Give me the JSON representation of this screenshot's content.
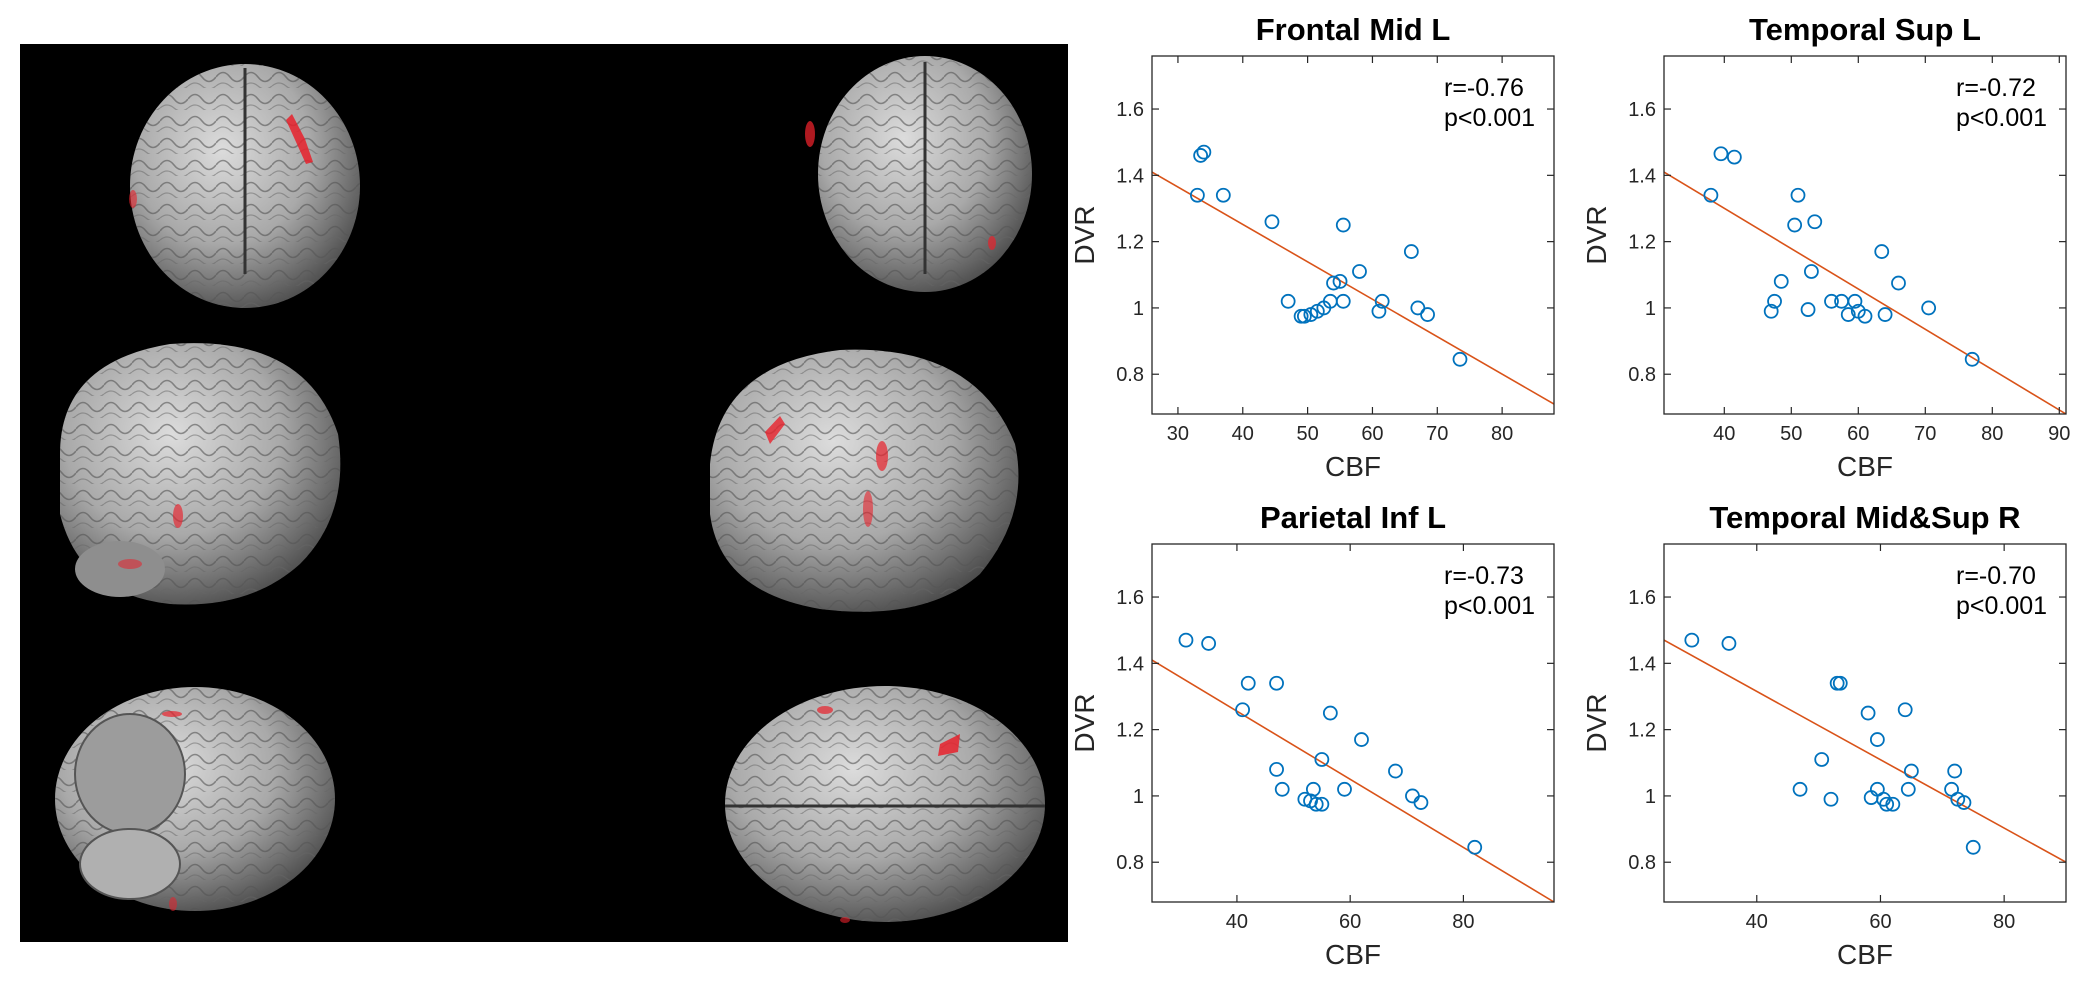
{
  "colors": {
    "marker": "#0072BD",
    "fit_line": "#D95319",
    "axes": "#262626",
    "activation": "#e8212b",
    "brain": "#a9a9a9"
  },
  "brain_views": [
    "anterior",
    "posterior",
    "left-lateral",
    "right-lateral",
    "inferior",
    "superior"
  ],
  "chart_data": [
    {
      "type": "scatter",
      "title": "Frontal Mid L",
      "xlabel": "CBF",
      "ylabel": "DVR",
      "xlim": [
        26,
        88
      ],
      "ylim": [
        0.68,
        1.76
      ],
      "xticks": [
        30,
        40,
        50,
        60,
        70,
        80
      ],
      "yticks": [
        0.8,
        1,
        1.2,
        1.4,
        1.6
      ],
      "annotation": [
        "r=-0.76",
        "p<0.001"
      ],
      "fit": {
        "x": [
          26,
          88
        ],
        "y": [
          1.41,
          0.71
        ]
      },
      "points": [
        {
          "x": 33,
          "y": 1.34
        },
        {
          "x": 33.5,
          "y": 1.46
        },
        {
          "x": 34,
          "y": 1.47
        },
        {
          "x": 37,
          "y": 1.34
        },
        {
          "x": 44.5,
          "y": 1.26
        },
        {
          "x": 47,
          "y": 1.02
        },
        {
          "x": 49,
          "y": 0.975
        },
        {
          "x": 49.5,
          "y": 0.975
        },
        {
          "x": 50.5,
          "y": 0.98
        },
        {
          "x": 51.5,
          "y": 0.99
        },
        {
          "x": 52.5,
          "y": 1.0
        },
        {
          "x": 53.5,
          "y": 1.02
        },
        {
          "x": 54,
          "y": 1.075
        },
        {
          "x": 55,
          "y": 1.08
        },
        {
          "x": 55.5,
          "y": 1.02
        },
        {
          "x": 55.5,
          "y": 1.25
        },
        {
          "x": 58,
          "y": 1.11
        },
        {
          "x": 61,
          "y": 0.99
        },
        {
          "x": 61.5,
          "y": 1.02
        },
        {
          "x": 66,
          "y": 1.17
        },
        {
          "x": 67,
          "y": 1.0
        },
        {
          "x": 68.5,
          "y": 0.98
        },
        {
          "x": 73.5,
          "y": 0.845
        }
      ]
    },
    {
      "type": "scatter",
      "title": "Temporal Sup L",
      "xlabel": "CBF",
      "ylabel": "DVR",
      "xlim": [
        31,
        91
      ],
      "ylim": [
        0.68,
        1.76
      ],
      "xticks": [
        40,
        50,
        60,
        70,
        80,
        90
      ],
      "yticks": [
        0.8,
        1,
        1.2,
        1.4,
        1.6
      ],
      "annotation": [
        "r=-0.72",
        "p<0.001"
      ],
      "fit": {
        "x": [
          31,
          91
        ],
        "y": [
          1.41,
          0.68
        ]
      },
      "points": [
        {
          "x": 38,
          "y": 1.34
        },
        {
          "x": 39.5,
          "y": 1.465
        },
        {
          "x": 41.5,
          "y": 1.455
        },
        {
          "x": 47,
          "y": 0.99
        },
        {
          "x": 47.5,
          "y": 1.02
        },
        {
          "x": 48.5,
          "y": 1.08
        },
        {
          "x": 50.5,
          "y": 1.25
        },
        {
          "x": 51,
          "y": 1.34
        },
        {
          "x": 52.5,
          "y": 0.995
        },
        {
          "x": 53,
          "y": 1.11
        },
        {
          "x": 53.5,
          "y": 1.26
        },
        {
          "x": 56,
          "y": 1.02
        },
        {
          "x": 57.5,
          "y": 1.02
        },
        {
          "x": 58.5,
          "y": 0.98
        },
        {
          "x": 59.5,
          "y": 1.02
        },
        {
          "x": 60,
          "y": 0.99
        },
        {
          "x": 61,
          "y": 0.975
        },
        {
          "x": 63.5,
          "y": 1.17
        },
        {
          "x": 64,
          "y": 0.98
        },
        {
          "x": 66,
          "y": 1.075
        },
        {
          "x": 70.5,
          "y": 1.0
        },
        {
          "x": 77,
          "y": 0.845
        }
      ]
    },
    {
      "type": "scatter",
      "title": "Parietal Inf L",
      "xlabel": "CBF",
      "ylabel": "DVR",
      "xlim": [
        25,
        96
      ],
      "ylim": [
        0.68,
        1.76
      ],
      "xticks": [
        40,
        60,
        80
      ],
      "yticks": [
        0.8,
        1,
        1.2,
        1.4,
        1.6
      ],
      "annotation": [
        "r=-0.73",
        "p<0.001"
      ],
      "fit": {
        "x": [
          25,
          96
        ],
        "y": [
          1.41,
          0.68
        ]
      },
      "points": [
        {
          "x": 31,
          "y": 1.47
        },
        {
          "x": 35,
          "y": 1.46
        },
        {
          "x": 41,
          "y": 1.26
        },
        {
          "x": 42,
          "y": 1.34
        },
        {
          "x": 47,
          "y": 1.34
        },
        {
          "x": 47,
          "y": 1.08
        },
        {
          "x": 48,
          "y": 1.02
        },
        {
          "x": 52,
          "y": 0.99
        },
        {
          "x": 53,
          "y": 0.985
        },
        {
          "x": 53.5,
          "y": 1.02
        },
        {
          "x": 54,
          "y": 0.975
        },
        {
          "x": 55,
          "y": 0.975
        },
        {
          "x": 55,
          "y": 1.11
        },
        {
          "x": 56.5,
          "y": 1.25
        },
        {
          "x": 59,
          "y": 1.02
        },
        {
          "x": 62,
          "y": 1.17
        },
        {
          "x": 68,
          "y": 1.075
        },
        {
          "x": 71,
          "y": 1.0
        },
        {
          "x": 72.5,
          "y": 0.98
        },
        {
          "x": 82,
          "y": 0.845
        }
      ]
    },
    {
      "type": "scatter",
      "title": "Temporal Mid&Sup R",
      "xlabel": "CBF",
      "ylabel": "DVR",
      "xlim": [
        25,
        90
      ],
      "ylim": [
        0.68,
        1.76
      ],
      "xticks": [
        40,
        60,
        80
      ],
      "yticks": [
        0.8,
        1,
        1.2,
        1.4,
        1.6
      ],
      "annotation": [
        "r=-0.70",
        "p<0.001"
      ],
      "fit": {
        "x": [
          25,
          90
        ],
        "y": [
          1.47,
          0.8
        ]
      },
      "points": [
        {
          "x": 29.5,
          "y": 1.47
        },
        {
          "x": 35.5,
          "y": 1.46
        },
        {
          "x": 47,
          "y": 1.02
        },
        {
          "x": 50.5,
          "y": 1.11
        },
        {
          "x": 52,
          "y": 0.99
        },
        {
          "x": 53,
          "y": 1.34
        },
        {
          "x": 53.5,
          "y": 1.34
        },
        {
          "x": 58,
          "y": 1.25
        },
        {
          "x": 58.5,
          "y": 0.995
        },
        {
          "x": 59.5,
          "y": 1.17
        },
        {
          "x": 59.5,
          "y": 1.02
        },
        {
          "x": 60.5,
          "y": 0.99
        },
        {
          "x": 61,
          "y": 0.975
        },
        {
          "x": 62,
          "y": 0.975
        },
        {
          "x": 64,
          "y": 1.26
        },
        {
          "x": 64.5,
          "y": 1.02
        },
        {
          "x": 65,
          "y": 1.075
        },
        {
          "x": 71.5,
          "y": 1.02
        },
        {
          "x": 72,
          "y": 1.075
        },
        {
          "x": 72.5,
          "y": 0.99
        },
        {
          "x": 73.5,
          "y": 0.98
        },
        {
          "x": 75,
          "y": 0.845
        }
      ]
    }
  ]
}
